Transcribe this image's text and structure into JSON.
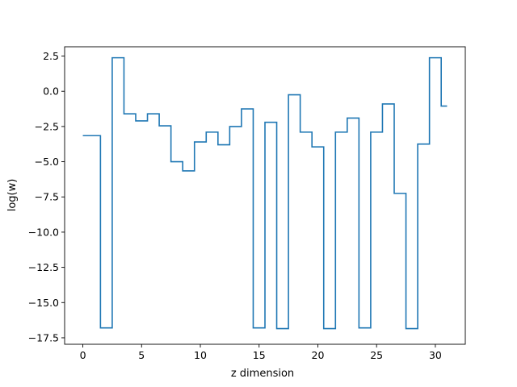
{
  "chart_data": {
    "type": "line",
    "drawstyle": "steps-mid",
    "title": "",
    "xlabel": "z dimension",
    "ylabel": "log(w)",
    "xlim": [
      -1.55,
      32.55
    ],
    "ylim": [
      -17.96,
      3.16
    ],
    "xticks": [
      0,
      5,
      10,
      15,
      20,
      25,
      30
    ],
    "yticks": [
      2.5,
      0.0,
      -2.5,
      -5.0,
      -7.5,
      -10.0,
      -12.5,
      -15.0,
      -17.5
    ],
    "ytick_labels": [
      "2.5",
      "0.0",
      "−2.5",
      "−5.0",
      "−7.5",
      "−10.0",
      "−12.5",
      "−15.0",
      "−17.5"
    ],
    "grid": false,
    "line_color": "#1f77b4",
    "series": [
      {
        "x": [
          0,
          1,
          2,
          3,
          4,
          5,
          6,
          7,
          8,
          9,
          10,
          11,
          12,
          13,
          14,
          15,
          16,
          17,
          18,
          19,
          20,
          21,
          22,
          23,
          24,
          25,
          26,
          27,
          28,
          29,
          30,
          31
        ],
        "values": [
          -3.15,
          -3.15,
          -16.8,
          2.38,
          -1.6,
          -2.1,
          -1.6,
          -2.45,
          -5.0,
          -5.65,
          -3.6,
          -2.9,
          -3.8,
          -2.5,
          -1.25,
          -16.8,
          -2.2,
          -16.85,
          -0.25,
          -2.9,
          -3.95,
          -16.85,
          -2.9,
          -1.9,
          -16.8,
          -2.9,
          -0.9,
          -7.25,
          -16.85,
          -3.75,
          2.38,
          -1.05
        ]
      }
    ]
  }
}
